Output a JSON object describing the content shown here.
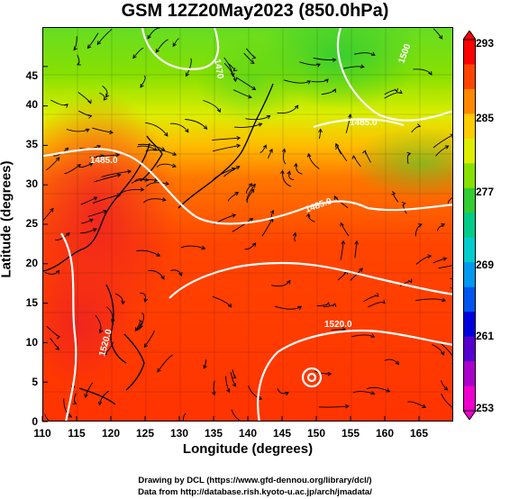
{
  "title": "GSM 12Z20May2023 (850.0hPa)",
  "map": {
    "x_axis_label": "Longitude (degrees)",
    "y_axis_label": "Latitude  (degrees)",
    "x_ticks": [
      "110",
      "115",
      "120",
      "125",
      "130",
      "135",
      "140",
      "145",
      "150",
      "155",
      "160",
      "165"
    ],
    "y_ticks": [
      "0",
      "5",
      "10",
      "15",
      "20",
      "25",
      "30",
      "35",
      "40",
      "45"
    ],
    "lon_range": [
      110,
      170
    ],
    "lat_range": [
      0,
      50
    ],
    "contour_labels": [
      "1485.0",
      "1485.0",
      "1485.0",
      "1470",
      "1500",
      "1520.0",
      "1520.0"
    ],
    "colorbar": {
      "ticks": [
        "293",
        "285",
        "277",
        "269",
        "261",
        "253"
      ],
      "colors": [
        "#ff0000",
        "#ff4400",
        "#ff8800",
        "#ffcc00",
        "#ddee00",
        "#88e000",
        "#33cc33",
        "#00cc88",
        "#00cccc",
        "#0099ee",
        "#0055ee",
        "#0000dd",
        "#5500cc",
        "#aa00cc",
        "#ee00cc"
      ]
    }
  },
  "footer": {
    "line1": "Drawing by DCL (https://www.gfd-dennou.org/library/dcl/)",
    "line2": "Data from http://database.rish.kyoto-u.ac.jp/arch/jmadata/"
  }
}
